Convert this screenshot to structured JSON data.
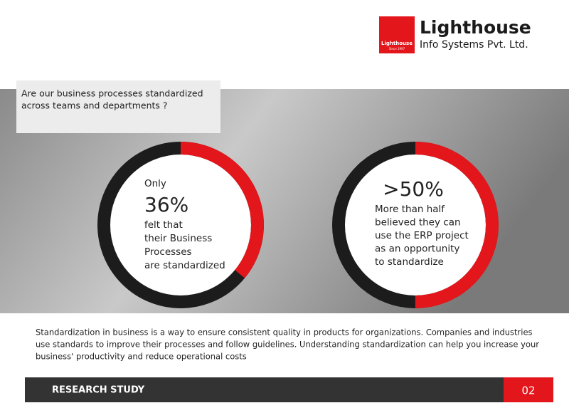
{
  "logo": {
    "badge": "Lighthouse",
    "badge_since": "Since 1997",
    "name": "Lighthouse",
    "subtitle": "Info Systems Pvt. Ltd."
  },
  "question": [
    "Are our business processes standardized",
    "across teams and departments ?"
  ],
  "stats": [
    {
      "intro": "Only",
      "value": 36,
      "value_label": "36%",
      "lines": [
        "felt that",
        "their Business",
        "Processes",
        "are standardized"
      ]
    },
    {
      "value": 50,
      "value_label": ">50%",
      "lines": [
        "More than half",
        "believed they can",
        "use the ERP project",
        "as an opportunity",
        "to standardize"
      ]
    }
  ],
  "paragraph": [
    "Standardization in business is a way to ensure consistent quality in products for organizations. Companies and industries",
    "use standards to improve their processes and follow guidelines. Understanding standardization can help you increase your",
    "business' productivity and reduce operational costs"
  ],
  "footer": {
    "label": "RESEARCH STUDY",
    "page": "02"
  }
}
